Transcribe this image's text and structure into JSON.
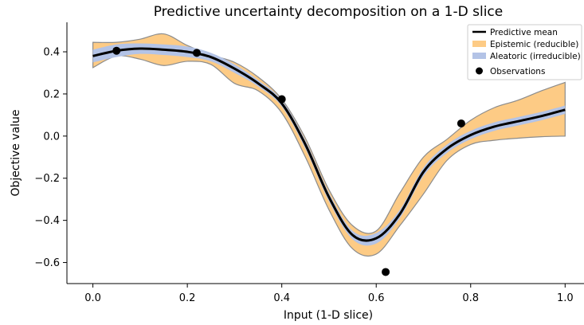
{
  "chart_data": {
    "type": "line",
    "title": "Predictive uncertainty decomposition on a 1-D slice",
    "xlabel": "Input (1-D slice)",
    "ylabel": "Objective value",
    "xlim": [
      -0.055,
      1.04
    ],
    "ylim": [
      -0.7,
      0.54
    ],
    "x_ticks": [
      0.0,
      0.2,
      0.4,
      0.6,
      0.8,
      1.0
    ],
    "x_tick_labels": [
      "0.0",
      "0.2",
      "0.4",
      "0.6",
      "0.8",
      "1.0"
    ],
    "y_ticks": [
      0.4,
      0.2,
      0.0,
      -0.2,
      -0.4,
      -0.6
    ],
    "y_tick_labels": [
      "0.4",
      "0.2",
      "0.0",
      "−0.2",
      "−0.4",
      "−0.6"
    ],
    "grid": false,
    "legend_position": "top-right",
    "colors": {
      "mean": "#000000",
      "epistemic_fill": "#fdcb85",
      "epistemic_edge": "#8c8c8c",
      "aleatoric_fill": "#b3c3e6",
      "observations": "#000000"
    },
    "series": [
      {
        "name": "Predictive mean",
        "kind": "line",
        "x": [
          0.0,
          0.05,
          0.1,
          0.15,
          0.2,
          0.25,
          0.3,
          0.35,
          0.4,
          0.45,
          0.5,
          0.55,
          0.6,
          0.65,
          0.7,
          0.75,
          0.8,
          0.85,
          0.9,
          0.95,
          1.0
        ],
        "y": [
          0.38,
          0.405,
          0.415,
          0.41,
          0.4,
          0.375,
          0.32,
          0.25,
          0.155,
          -0.04,
          -0.29,
          -0.47,
          -0.485,
          -0.37,
          -0.17,
          -0.06,
          0.005,
          0.045,
          0.07,
          0.095,
          0.125
        ]
      },
      {
        "name": "Epistemic (reducible)",
        "kind": "band",
        "x": [
          0.0,
          0.05,
          0.1,
          0.15,
          0.2,
          0.25,
          0.3,
          0.35,
          0.4,
          0.45,
          0.5,
          0.55,
          0.6,
          0.65,
          0.7,
          0.75,
          0.8,
          0.85,
          0.9,
          0.95,
          1.0
        ],
        "upper": [
          0.445,
          0.445,
          0.46,
          0.485,
          0.43,
          0.385,
          0.35,
          0.28,
          0.175,
          -0.01,
          -0.255,
          -0.425,
          -0.45,
          -0.27,
          -0.1,
          -0.015,
          0.075,
          0.135,
          0.17,
          0.215,
          0.255
        ],
        "lower": [
          0.325,
          0.38,
          0.365,
          0.335,
          0.355,
          0.34,
          0.25,
          0.215,
          0.11,
          -0.1,
          -0.35,
          -0.535,
          -0.56,
          -0.425,
          -0.275,
          -0.115,
          -0.04,
          -0.02,
          -0.01,
          -0.003,
          0.0
        ]
      },
      {
        "name": "Aleatoric (irreducible)",
        "kind": "band",
        "x": [
          0.0,
          0.05,
          0.1,
          0.15,
          0.2,
          0.25,
          0.3,
          0.35,
          0.4,
          0.45,
          0.5,
          0.55,
          0.6,
          0.65,
          0.7,
          0.75,
          0.8,
          0.85,
          0.9,
          0.95,
          1.0
        ],
        "upper": [
          0.41,
          0.435,
          0.44,
          0.435,
          0.425,
          0.395,
          0.34,
          0.265,
          0.17,
          -0.02,
          -0.27,
          -0.45,
          -0.46,
          -0.35,
          -0.15,
          -0.04,
          0.025,
          0.065,
          0.09,
          0.115,
          0.145
        ],
        "lower": [
          0.35,
          0.375,
          0.39,
          0.385,
          0.375,
          0.355,
          0.3,
          0.235,
          0.14,
          -0.06,
          -0.31,
          -0.49,
          -0.51,
          -0.39,
          -0.19,
          -0.08,
          -0.015,
          0.025,
          0.05,
          0.075,
          0.105
        ]
      },
      {
        "name": "Observations",
        "kind": "scatter",
        "x": [
          0.05,
          0.22,
          0.4,
          0.62,
          0.78
        ],
        "y": [
          0.405,
          0.395,
          0.175,
          -0.645,
          0.06
        ]
      }
    ]
  }
}
